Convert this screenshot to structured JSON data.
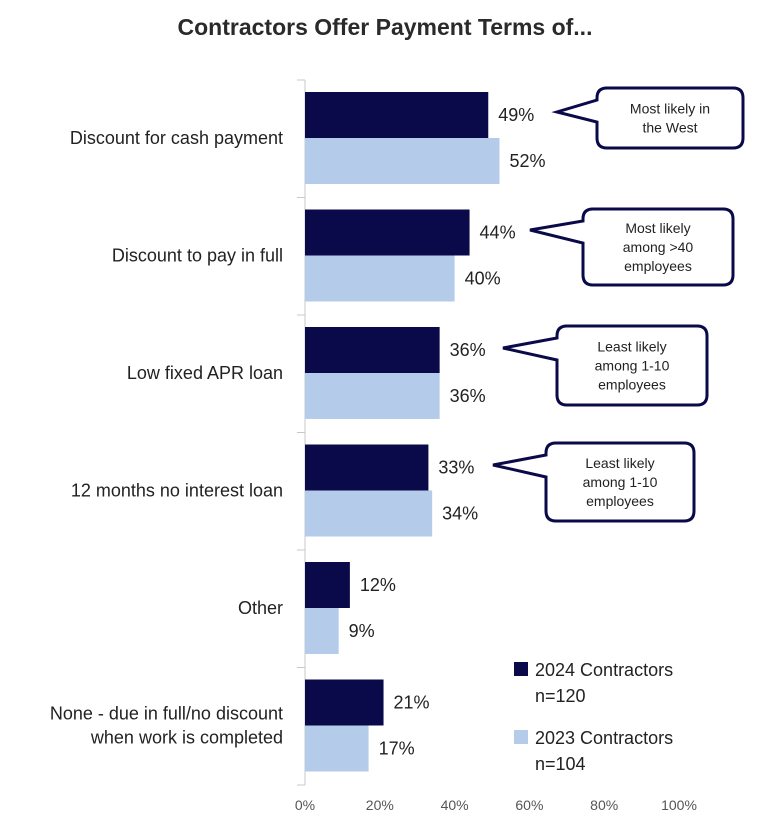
{
  "chart_data": {
    "type": "bar",
    "orientation": "horizontal",
    "title": "Contractors Offer Payment Terms of...",
    "categories": [
      "Discount for cash payment",
      "Discount to pay in full",
      "Low fixed APR loan",
      "12 months no interest loan",
      "Other",
      "None - due in full/no discount when work is completed"
    ],
    "series": [
      {
        "name": "2024 Contractors n=120",
        "color": "#0a0a4a",
        "values": [
          49,
          44,
          36,
          33,
          12,
          21
        ]
      },
      {
        "name": "2023 Contractors n=104",
        "color": "#b4cbea",
        "values": [
          52,
          40,
          36,
          34,
          9,
          17
        ]
      }
    ],
    "xlim": [
      0,
      100
    ],
    "xticks": [
      "0%",
      "20%",
      "40%",
      "60%",
      "80%",
      "100%"
    ],
    "value_suffix": "%",
    "grid": false,
    "legend_position": "bottom-right",
    "legend": [
      {
        "lines": [
          "2024 Contractors",
          "n=120"
        ],
        "color": "#0a0a4a"
      },
      {
        "lines": [
          "2023 Contractors",
          "n=104"
        ],
        "color": "#b4cbea"
      }
    ],
    "annotations": [
      {
        "category_index": 0,
        "lines": [
          "Most likely in",
          "the West"
        ]
      },
      {
        "category_index": 1,
        "lines": [
          "Most likely",
          "among >40",
          "employees"
        ]
      },
      {
        "category_index": 2,
        "lines": [
          "Least likely",
          "among 1-10",
          "employees"
        ]
      },
      {
        "category_index": 3,
        "lines": [
          "Least likely",
          "among 1-10",
          "employees"
        ]
      }
    ]
  }
}
